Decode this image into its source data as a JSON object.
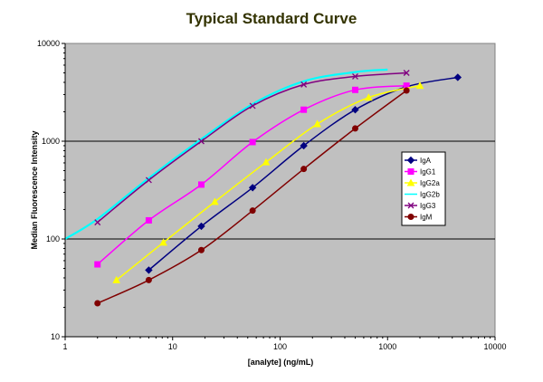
{
  "chart_data": {
    "type": "line",
    "title": "Typical Standard Curve",
    "xlabel": "[analyte] (ng/mL)",
    "ylabel": "Median Fluorescence Intensity",
    "xscale": "log",
    "yscale": "log",
    "xlim": [
      1,
      10000
    ],
    "ylim": [
      10,
      10000
    ],
    "x_ticks": [
      "1",
      "10",
      "100",
      "1000",
      "10000"
    ],
    "y_ticks": [
      "10",
      "100",
      "1000",
      "10000"
    ],
    "grid": "horizontal",
    "background": "#c0c0c0",
    "legend_position": "right",
    "series": [
      {
        "name": "IgA",
        "color": "#000080",
        "marker": "diamond",
        "x": [
          6,
          18.5,
          55.5,
          166,
          500,
          1500,
          4500
        ],
        "y": [
          48,
          135,
          335,
          900,
          2100,
          3600,
          4500
        ]
      },
      {
        "name": "IgG1",
        "color": "#ff00ff",
        "marker": "square",
        "x": [
          2,
          6,
          18.5,
          55.5,
          166,
          500,
          1500
        ],
        "y": [
          55,
          155,
          360,
          980,
          2100,
          3350,
          3700
        ]
      },
      {
        "name": "IgG2a",
        "color": "#ffff00",
        "marker": "triangle",
        "x": [
          3,
          8.2,
          24.7,
          74,
          222,
          667,
          2000
        ],
        "y": [
          38,
          92,
          240,
          610,
          1500,
          2800,
          3700
        ]
      },
      {
        "name": "IgG2b",
        "color": "#00ffff",
        "marker": "none",
        "x": [
          1,
          2,
          6,
          18.5,
          55.5,
          166,
          500,
          1000
        ],
        "y": [
          100,
          160,
          420,
          1050,
          2400,
          4100,
          5100,
          5400
        ]
      },
      {
        "name": "IgG3",
        "color": "#800080",
        "marker": "x",
        "x": [
          2,
          6,
          18.5,
          55.5,
          166,
          500,
          1500
        ],
        "y": [
          148,
          400,
          1000,
          2300,
          3800,
          4600,
          5000
        ]
      },
      {
        "name": "IgM",
        "color": "#800000",
        "marker": "circle",
        "x": [
          2,
          6,
          18.5,
          55.5,
          166,
          500,
          1500
        ],
        "y": [
          22,
          38,
          77,
          195,
          520,
          1350,
          3300
        ]
      }
    ]
  }
}
